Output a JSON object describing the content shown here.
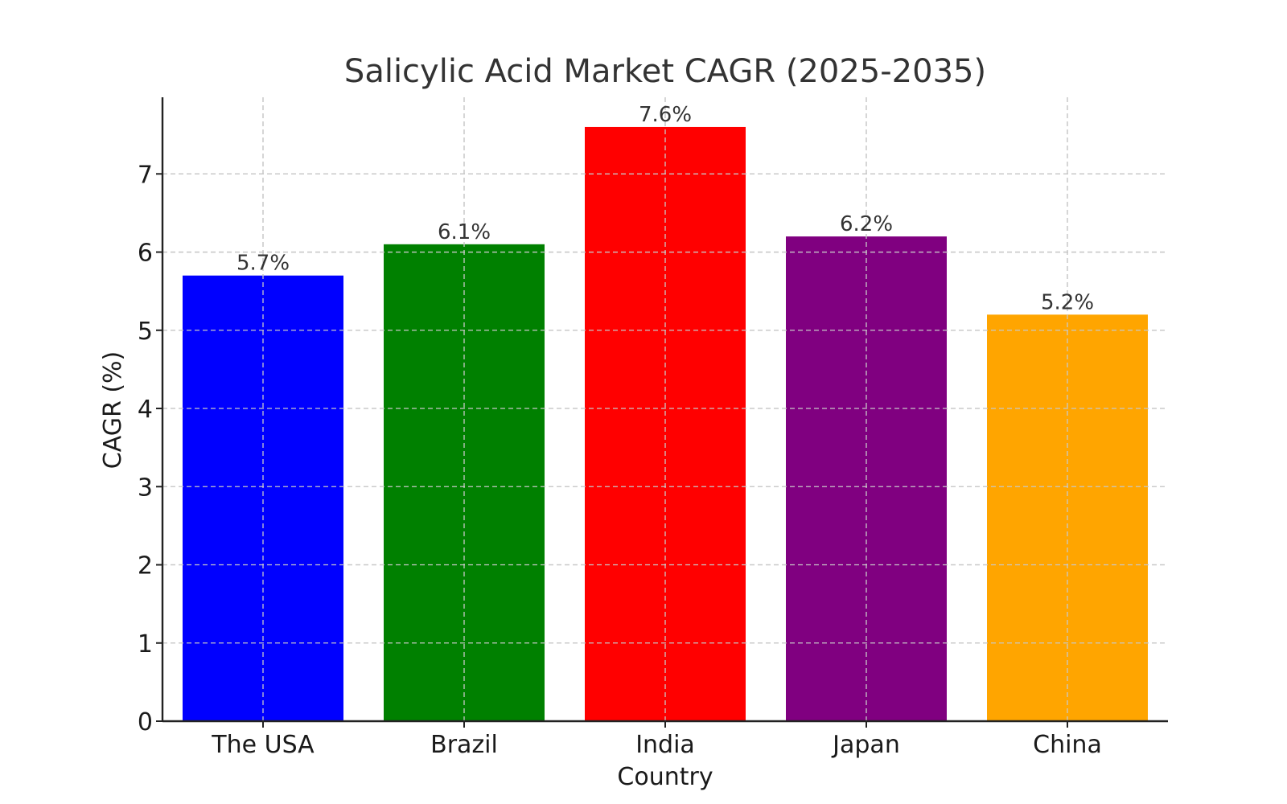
{
  "chart_data": {
    "type": "bar",
    "title": "Salicylic Acid Market CAGR (2025-2035)",
    "xlabel": "Country",
    "ylabel": "CAGR (%)",
    "categories": [
      "The USA",
      "Brazil",
      "India",
      "Japan",
      "China"
    ],
    "values": [
      5.7,
      6.1,
      7.6,
      6.2,
      5.2
    ],
    "value_labels": [
      "5.7%",
      "6.1%",
      "7.6%",
      "6.2%",
      "5.2%"
    ],
    "colors": [
      "#0000ff",
      "#008000",
      "#ff0000",
      "#800080",
      "#ffa500"
    ],
    "ylim": [
      0,
      7.98
    ],
    "yticks": [
      0,
      1,
      2,
      3,
      4,
      5,
      6,
      7
    ],
    "ytick_labels": [
      "0",
      "1",
      "2",
      "3",
      "4",
      "5",
      "6",
      "7"
    ],
    "grid": true,
    "legend": "none"
  }
}
